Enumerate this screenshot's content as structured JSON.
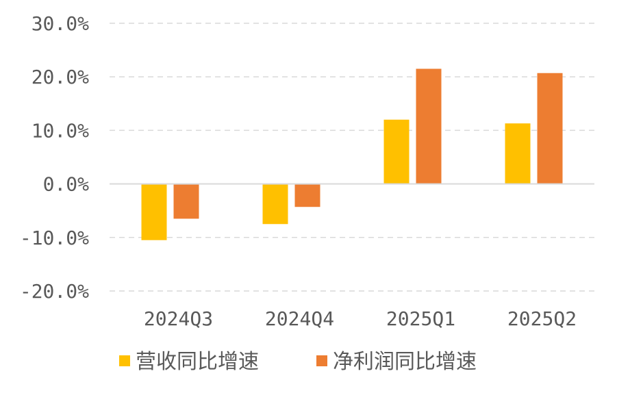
{
  "chart_data": {
    "type": "bar",
    "categories": [
      "2024Q3",
      "2024Q4",
      "2025Q1",
      "2025Q2"
    ],
    "series": [
      {
        "name": "营收同比增速",
        "color": "#FFC000",
        "values": [
          -10.5,
          -7.5,
          12.0,
          11.3
        ]
      },
      {
        "name": "净利润同比增速",
        "color": "#ED7D31",
        "values": [
          -6.5,
          -4.3,
          21.5,
          20.7
        ]
      }
    ],
    "yticks": [
      "30.0%",
      "20.0%",
      "10.0%",
      "0.0%",
      "-10.0%",
      "-20.0%"
    ],
    "ylim": [
      -20,
      30
    ],
    "grid": true,
    "legend_position": "bottom",
    "unit": "%",
    "title": "",
    "xlabel": "",
    "ylabel": ""
  }
}
